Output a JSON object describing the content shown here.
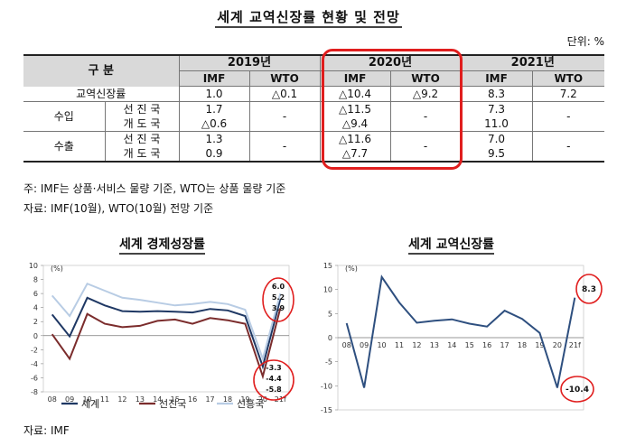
{
  "title": "세계 교역신장률 현황 및 전망",
  "unit": "단위: %",
  "table": {
    "header_label": "구 분",
    "years": [
      "2019년",
      "2020년",
      "2021년"
    ],
    "sources": [
      "IMF",
      "WTO",
      "IMF",
      "WTO",
      "IMF",
      "WTO"
    ],
    "rows": {
      "trade": {
        "label": "교역신장률",
        "values": [
          "1.0",
          "△0.1",
          "△10.4",
          "△9.2",
          "8.3",
          "7.2"
        ]
      },
      "import": {
        "label": "수입",
        "sub": [
          "선 진 국",
          "개 도 국"
        ],
        "imf2019": [
          "1.7",
          "△0.6"
        ],
        "wto2019": "-",
        "imf2020": [
          "△11.5",
          "△9.4"
        ],
        "wto2020": "-",
        "imf2021": [
          "7.3",
          "11.0"
        ],
        "wto2021": "-"
      },
      "export": {
        "label": "수출",
        "sub": [
          "선 진 국",
          "개 도 국"
        ],
        "imf2019": [
          "1.3",
          "0.9"
        ],
        "wto2019": "-",
        "imf2020": [
          "△11.6",
          "△7.7"
        ],
        "wto2020": "-",
        "imf2021": [
          "7.0",
          "9.5"
        ],
        "wto2021": "-"
      }
    }
  },
  "note1": "주: IMF는 상품·서비스 물량 기준, WTO는 상품 물량 기준",
  "note2": "자료: IMF(10월), WTO(10월) 전망 기준",
  "source": "자료: IMF",
  "chart_data": [
    {
      "type": "line",
      "title": "세계 경제성장률",
      "ylabel": "(%)",
      "ylim": [
        -8,
        10
      ],
      "yticks": [
        10,
        8,
        6,
        4,
        2,
        0,
        -2,
        -4,
        -6,
        -8
      ],
      "x": [
        "08",
        "09",
        "10",
        "11",
        "12",
        "13",
        "14",
        "15",
        "16",
        "17",
        "18",
        "19",
        "20",
        "21f"
      ],
      "series": [
        {
          "name": "세계",
          "color": "#1f3864",
          "values": [
            3.0,
            -0.1,
            5.4,
            4.3,
            3.5,
            3.4,
            3.5,
            3.4,
            3.3,
            3.8,
            3.6,
            2.8,
            -4.4,
            5.2
          ]
        },
        {
          "name": "선진국",
          "color": "#7b2c2c",
          "values": [
            0.2,
            -3.3,
            3.1,
            1.7,
            1.2,
            1.4,
            2.1,
            2.3,
            1.7,
            2.5,
            2.2,
            1.7,
            -5.8,
            3.9
          ]
        },
        {
          "name": "신흥국",
          "color": "#b8cce4",
          "values": [
            5.7,
            2.8,
            7.4,
            6.4,
            5.4,
            5.1,
            4.7,
            4.3,
            4.5,
            4.8,
            4.5,
            3.7,
            -3.3,
            6.0
          ]
        }
      ],
      "annotations_2021": [
        "6.0",
        "5.2",
        "3.9"
      ],
      "annotations_2020": [
        "-3.3",
        "-4.4",
        "-5.8"
      ]
    },
    {
      "type": "line",
      "title": "세계 교역신장률",
      "ylabel": "(%)",
      "ylim": [
        -15,
        15
      ],
      "yticks": [
        15,
        10,
        5,
        0,
        -5,
        -10,
        -15
      ],
      "x": [
        "08",
        "09",
        "10",
        "11",
        "12",
        "13",
        "14",
        "15",
        "16",
        "17",
        "18",
        "19",
        "20",
        "21f"
      ],
      "series": [
        {
          "color": "#2e4f7f",
          "values": [
            3.0,
            -10.4,
            12.6,
            7.3,
            3.1,
            3.5,
            3.8,
            2.9,
            2.3,
            5.6,
            3.9,
            1.0,
            -10.4,
            8.3
          ]
        }
      ],
      "annotations": [
        "8.3",
        "-10.4"
      ]
    }
  ]
}
